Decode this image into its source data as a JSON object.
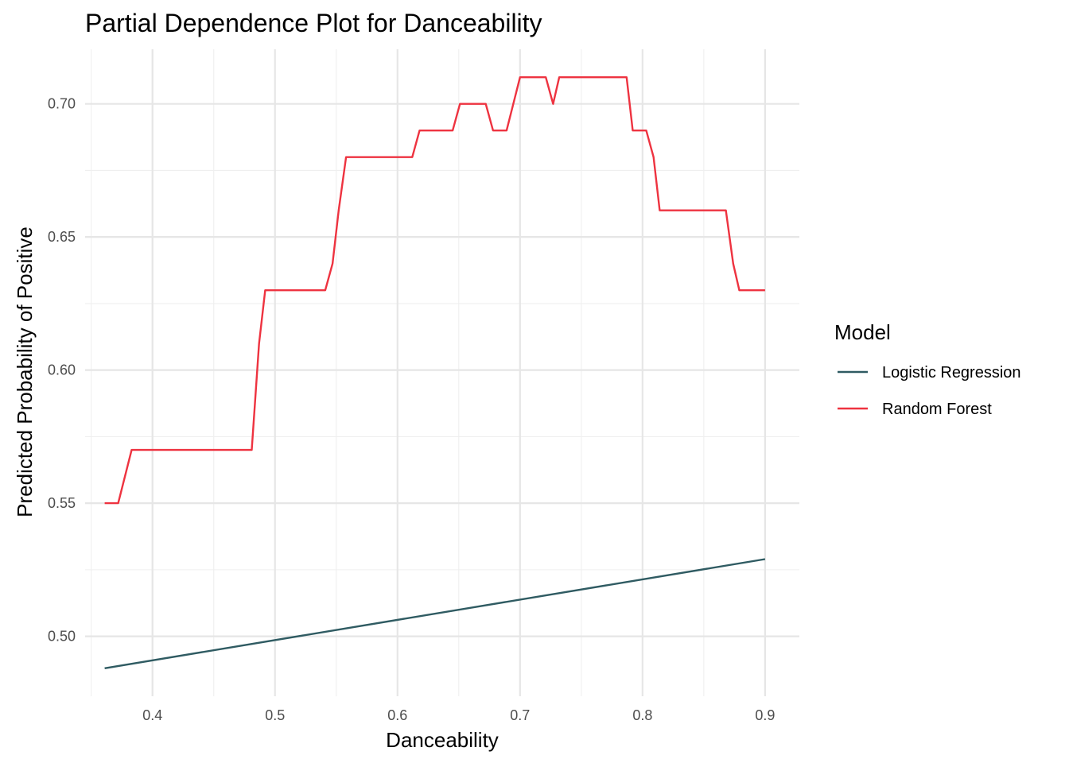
{
  "chart_data": {
    "type": "line",
    "title": "Partial Dependence Plot for Danceability",
    "xlabel": "Danceability",
    "ylabel": "Predicted Probability of Positive",
    "xlim": [
      0.345,
      0.928
    ],
    "ylim": [
      0.4775,
      0.7205
    ],
    "x_ticks": [
      "0.4",
      "0.5",
      "0.6",
      "0.7",
      "0.8",
      "0.9"
    ],
    "x_tick_values": [
      0.4,
      0.5,
      0.6,
      0.7,
      0.8,
      0.9
    ],
    "y_ticks": [
      "0.50",
      "0.55",
      "0.60",
      "0.65",
      "0.70"
    ],
    "y_tick_values": [
      0.5,
      0.55,
      0.6,
      0.65,
      0.7
    ],
    "grid": true,
    "legend": {
      "title": "Model",
      "position": "right"
    },
    "series": [
      {
        "name": "Logistic Regression",
        "color": "#2f5b62",
        "x": [
          0.361,
          0.9
        ],
        "y": [
          0.488,
          0.529
        ]
      },
      {
        "name": "Random Forest",
        "color": "#ee3340",
        "x": [
          0.361,
          0.372,
          0.383,
          0.394,
          0.405,
          0.416,
          0.427,
          0.438,
          0.449,
          0.459,
          0.47,
          0.481,
          0.487,
          0.492,
          0.503,
          0.514,
          0.525,
          0.536,
          0.541,
          0.547,
          0.552,
          0.558,
          0.569,
          0.58,
          0.59,
          0.601,
          0.612,
          0.618,
          0.623,
          0.634,
          0.645,
          0.651,
          0.656,
          0.667,
          0.672,
          0.678,
          0.689,
          0.7,
          0.711,
          0.721,
          0.727,
          0.732,
          0.743,
          0.754,
          0.765,
          0.776,
          0.787,
          0.792,
          0.798,
          0.803,
          0.809,
          0.814,
          0.825,
          0.836,
          0.847,
          0.858,
          0.868,
          0.874,
          0.879,
          0.89,
          0.9
        ],
        "y": [
          0.55,
          0.55,
          0.57,
          0.57,
          0.57,
          0.57,
          0.57,
          0.57,
          0.57,
          0.57,
          0.57,
          0.57,
          0.61,
          0.63,
          0.63,
          0.63,
          0.63,
          0.63,
          0.63,
          0.64,
          0.66,
          0.68,
          0.68,
          0.68,
          0.68,
          0.68,
          0.68,
          0.69,
          0.69,
          0.69,
          0.69,
          0.7,
          0.7,
          0.7,
          0.7,
          0.69,
          0.69,
          0.71,
          0.71,
          0.71,
          0.7,
          0.71,
          0.71,
          0.71,
          0.71,
          0.71,
          0.71,
          0.69,
          0.69,
          0.69,
          0.68,
          0.66,
          0.66,
          0.66,
          0.66,
          0.66,
          0.66,
          0.64,
          0.63,
          0.63,
          0.63
        ]
      }
    ]
  }
}
